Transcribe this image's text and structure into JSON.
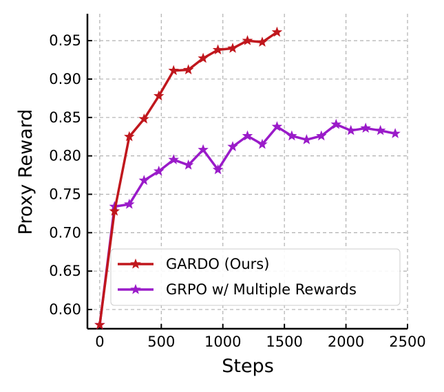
{
  "chart_data": {
    "type": "line",
    "title": "",
    "xlabel": "Steps",
    "ylabel": "Proxy Reward",
    "xlim": [
      -100,
      2500
    ],
    "ylim": [
      0.575,
      0.985
    ],
    "xticks": [
      0,
      500,
      1000,
      1500,
      2000,
      2500
    ],
    "yticks": [
      0.6,
      0.65,
      0.7,
      0.75,
      0.8,
      0.85,
      0.9,
      0.95
    ],
    "xtick_labels": [
      "0",
      "500",
      "1000",
      "1500",
      "2000",
      "2500"
    ],
    "ytick_labels": [
      "0.60",
      "0.65",
      "0.70",
      "0.75",
      "0.80",
      "0.85",
      "0.90",
      "0.95"
    ],
    "grid": true,
    "legend_position": "lower-right",
    "series": [
      {
        "name": "GARDO (Ours)",
        "color": "#c0171d",
        "marker": "star",
        "x": [
          0,
          120,
          240,
          360,
          480,
          600,
          720,
          840,
          960,
          1080,
          1200,
          1320,
          1440
        ],
        "y": [
          0.58,
          0.728,
          0.825,
          0.848,
          0.878,
          0.911,
          0.912,
          0.927,
          0.938,
          0.94,
          0.95,
          0.948,
          0.961
        ]
      },
      {
        "name": "GRPO w/ Multiple Rewards",
        "color": "#9a1bc9",
        "marker": "star",
        "x": [
          0,
          120,
          240,
          360,
          480,
          600,
          720,
          840,
          960,
          1080,
          1200,
          1320,
          1440,
          1560,
          1680,
          1800,
          1920,
          2040,
          2160,
          2280,
          2400
        ],
        "y": [
          0.58,
          0.734,
          0.737,
          0.768,
          0.78,
          0.795,
          0.788,
          0.808,
          0.782,
          0.812,
          0.826,
          0.815,
          0.838,
          0.826,
          0.821,
          0.826,
          0.841,
          0.833,
          0.836,
          0.833,
          0.829
        ]
      }
    ]
  }
}
